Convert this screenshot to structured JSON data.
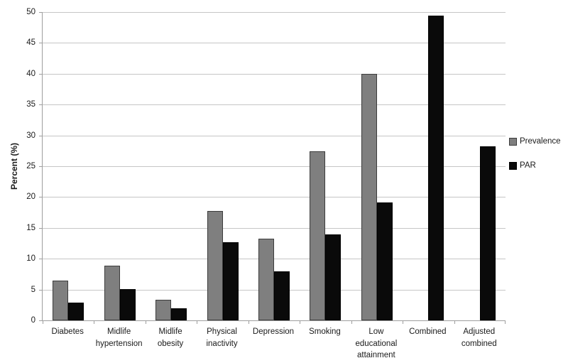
{
  "chart_data": {
    "type": "bar",
    "title": "",
    "xlabel": "",
    "ylabel": "Percent (%)",
    "ylim": [
      0,
      50
    ],
    "ytick_step": 5,
    "yticks": [
      0,
      5,
      10,
      15,
      20,
      25,
      30,
      35,
      40,
      45,
      50
    ],
    "grid": true,
    "legend_position": "right",
    "categories": [
      "Diabetes",
      "Midlife hypertension",
      "Midlife obesity",
      "Physical inactivity",
      "Depression",
      "Smoking",
      "Low educational attainment",
      "Combined",
      "Adjusted combined"
    ],
    "series": [
      {
        "name": "Prevalence",
        "color": "#7f7f7f",
        "border_color": "#3c3c3c",
        "values": [
          6.4,
          8.9,
          3.4,
          17.7,
          13.2,
          27.4,
          40.0,
          null,
          null
        ]
      },
      {
        "name": "PAR",
        "color": "#0a0a0a",
        "border_color": "#000000",
        "values": [
          2.9,
          5.1,
          2.0,
          12.7,
          7.9,
          13.9,
          19.1,
          49.4,
          28.2
        ]
      }
    ],
    "colors": {
      "gridline": "#c6c6c6",
      "axis": "#9e9e9e",
      "text": "#1a1a1a",
      "background": "#ffffff"
    }
  }
}
